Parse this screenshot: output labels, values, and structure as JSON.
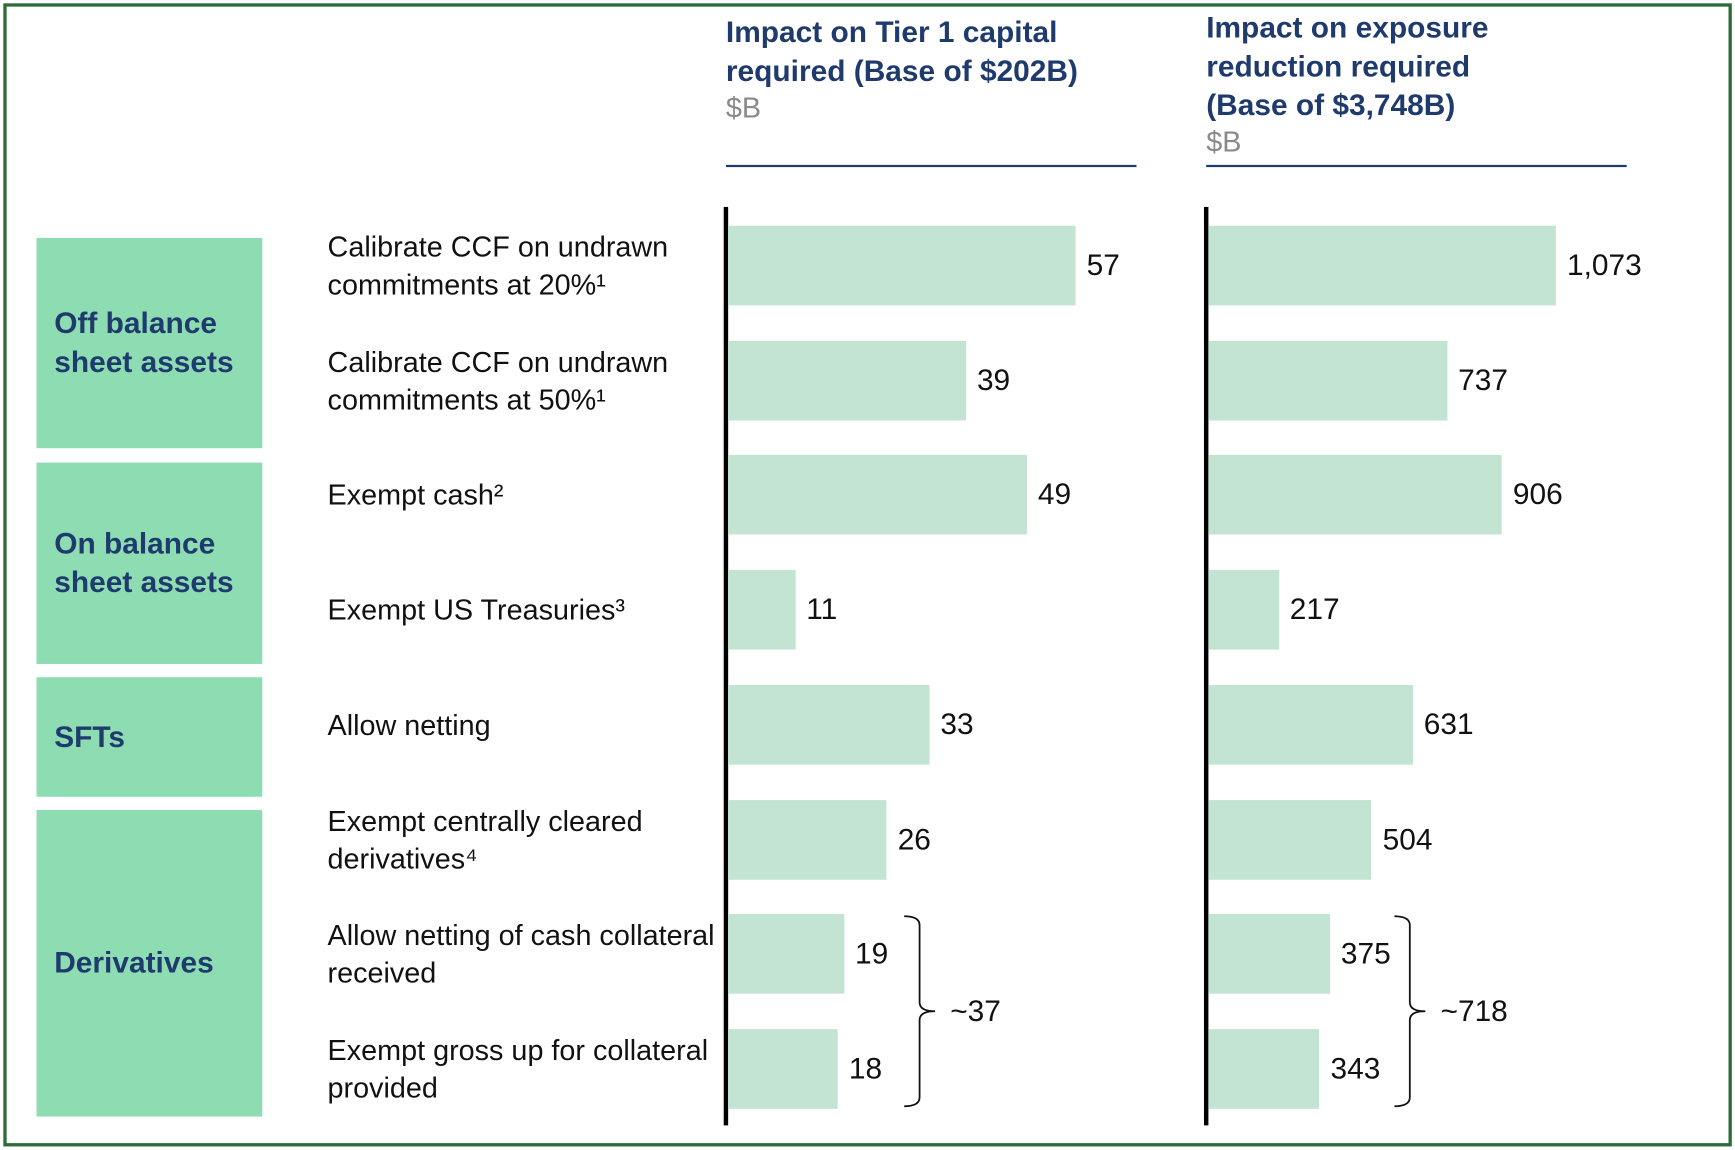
{
  "groups": [
    "Off balance sheet assets",
    "On balance sheet assets",
    "SFTs",
    "Derivatives"
  ],
  "categories": [
    "Calibrate CCF on undrawn commitments at 20%¹",
    "Calibrate CCF on undrawn commitments at 50%¹",
    "Exempt cash²",
    "Exempt US Treasuries³",
    "Allow netting",
    "Exempt centrally cleared derivatives⁴",
    "Allow netting of cash collateral received",
    "Exempt gross up for collateral provided"
  ],
  "chart_data": [
    {
      "type": "bar",
      "orientation": "horizontal",
      "title": "Impact on Tier 1 capital required (Base of $202B)",
      "subtitle": "$B",
      "values": [
        57,
        39,
        49,
        11,
        33,
        26,
        19,
        18
      ],
      "color": "#c3e4d3",
      "annotation": "~37"
    },
    {
      "type": "bar",
      "orientation": "horizontal",
      "title": "Impact on exposure reduction required (Base of $3,748B)",
      "subtitle": "$B",
      "values": [
        1073,
        737,
        906,
        217,
        631,
        504,
        375,
        343
      ],
      "value_labels": [
        "1,073",
        "737",
        "906",
        "217",
        "631",
        "504",
        "375",
        "343"
      ],
      "color": "#c3e4d3",
      "annotation": "~718"
    }
  ]
}
